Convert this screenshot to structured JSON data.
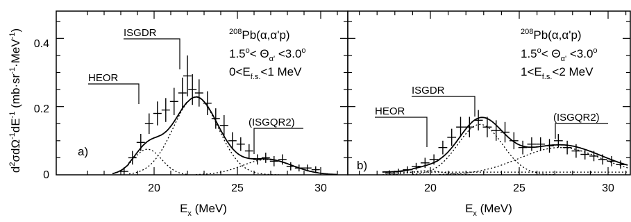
{
  "chart_data": {
    "type": "scatter",
    "ylabel_parts": {
      "a": "d",
      "b": "2",
      "c": "σdΩ",
      "d": "-1",
      "e": "dE",
      "f": "-1",
      "g": " (mb·sr",
      "h": "-1",
      "i": "·MeV",
      "j": "-1",
      "k": ")"
    },
    "yticks": [
      "0",
      "0.2",
      "0.4"
    ],
    "ylim": [
      0,
      0.48
    ],
    "xlim": [
      15.8,
      31.1
    ],
    "grid": false,
    "panels": [
      {
        "id": "a",
        "panel_label": "a)",
        "xlabel_main": "E",
        "xlabel_sub": "x",
        "xlabel_unit": " (MeV)",
        "xticks": [
          "20",
          "25",
          "30"
        ],
        "annotation": {
          "iso_sup": "208",
          "reaction": "Pb(α,α'p)",
          "angle_left": "1.5",
          "angle_deg1": "o",
          "angle_mid": "< Θ",
          "angle_sub": "α'",
          "angle_right": " <3.0",
          "angle_deg2": "o",
          "fs_left": "0<E",
          "fs_sub": "f.s.",
          "fs_right": "<1 MeV"
        },
        "resonances": [
          {
            "label": "HEOR",
            "x": 19.8
          },
          {
            "label": "ISGDR",
            "x": 22.2
          },
          {
            "label": "(ISGQR2)",
            "x": 26.2
          }
        ],
        "points": [
          {
            "x": 18.2,
            "y": 0.01,
            "err": 0.012
          },
          {
            "x": 18.7,
            "y": 0.05,
            "err": 0.02
          },
          {
            "x": 19.2,
            "y": 0.095,
            "err": 0.025
          },
          {
            "x": 19.7,
            "y": 0.15,
            "err": 0.03
          },
          {
            "x": 20.2,
            "y": 0.18,
            "err": 0.035
          },
          {
            "x": 20.7,
            "y": 0.19,
            "err": 0.035
          },
          {
            "x": 21.2,
            "y": 0.215,
            "err": 0.04
          },
          {
            "x": 21.7,
            "y": 0.24,
            "err": 0.045
          },
          {
            "x": 22.0,
            "y": 0.29,
            "err": 0.06
          },
          {
            "x": 22.3,
            "y": 0.25,
            "err": 0.045
          },
          {
            "x": 22.7,
            "y": 0.24,
            "err": 0.04
          },
          {
            "x": 23.2,
            "y": 0.21,
            "err": 0.035
          },
          {
            "x": 23.7,
            "y": 0.165,
            "err": 0.03
          },
          {
            "x": 24.2,
            "y": 0.145,
            "err": 0.03
          },
          {
            "x": 24.7,
            "y": 0.1,
            "err": 0.025
          },
          {
            "x": 25.2,
            "y": 0.09,
            "err": 0.02
          },
          {
            "x": 25.7,
            "y": 0.07,
            "err": 0.02
          },
          {
            "x": 26.2,
            "y": 0.045,
            "err": 0.015
          },
          {
            "x": 26.7,
            "y": 0.05,
            "err": 0.015
          },
          {
            "x": 27.2,
            "y": 0.04,
            "err": 0.015
          },
          {
            "x": 27.7,
            "y": 0.045,
            "err": 0.015
          },
          {
            "x": 28.2,
            "y": 0.025,
            "err": 0.012
          },
          {
            "x": 28.7,
            "y": 0.02,
            "err": 0.01
          },
          {
            "x": 29.2,
            "y": 0.02,
            "err": 0.01
          },
          {
            "x": 29.7,
            "y": 0.015,
            "err": 0.01
          }
        ],
        "components": [
          {
            "kind": "gauss",
            "A": 0.075,
            "mu": 19.6,
            "sigma": 0.85,
            "range": [
              17.5,
              22.0
            ]
          },
          {
            "kind": "gauss",
            "A": 0.228,
            "mu": 22.5,
            "sigma": 1.35,
            "range": [
              18.5,
              27.5
            ]
          },
          {
            "kind": "gauss",
            "A": 0.045,
            "mu": 26.8,
            "sigma": 1.5,
            "range": [
              22.5,
              31.0
            ]
          }
        ]
      },
      {
        "id": "b",
        "panel_label": "b)",
        "xlabel_main": "E",
        "xlabel_sub": "x",
        "xlabel_unit": " (MeV)",
        "xticks": [
          "20",
          "25",
          "30"
        ],
        "annotation": {
          "iso_sup": "208",
          "reaction": "Pb(α,α'p)",
          "angle_left": "1.5",
          "angle_deg1": "o",
          "angle_mid": "< Θ",
          "angle_sub": "α'",
          "angle_right": " <3.0",
          "angle_deg2": "o",
          "fs_left": "1<E",
          "fs_sub": "f.s.",
          "fs_right": "<2 MeV"
        },
        "resonances": [
          {
            "label": "HEOR",
            "x": 19.8
          },
          {
            "label": "ISGDR",
            "x": 22.7
          },
          {
            "label": "(ISGQR2)",
            "x": 27.0
          }
        ],
        "points": [
          {
            "x": 17.7,
            "y": 0.005,
            "err": 0.008
          },
          {
            "x": 18.2,
            "y": 0.01,
            "err": 0.008
          },
          {
            "x": 18.7,
            "y": 0.015,
            "err": 0.01
          },
          {
            "x": 19.2,
            "y": 0.025,
            "err": 0.01
          },
          {
            "x": 19.7,
            "y": 0.035,
            "err": 0.015
          },
          {
            "x": 20.2,
            "y": 0.045,
            "err": 0.015
          },
          {
            "x": 20.7,
            "y": 0.08,
            "err": 0.02
          },
          {
            "x": 21.2,
            "y": 0.11,
            "err": 0.025
          },
          {
            "x": 21.7,
            "y": 0.14,
            "err": 0.03
          },
          {
            "x": 22.2,
            "y": 0.14,
            "err": 0.03
          },
          {
            "x": 22.7,
            "y": 0.16,
            "err": 0.03
          },
          {
            "x": 23.2,
            "y": 0.14,
            "err": 0.03
          },
          {
            "x": 23.7,
            "y": 0.13,
            "err": 0.03
          },
          {
            "x": 24.2,
            "y": 0.125,
            "err": 0.03
          },
          {
            "x": 24.7,
            "y": 0.1,
            "err": 0.025
          },
          {
            "x": 25.2,
            "y": 0.08,
            "err": 0.02
          },
          {
            "x": 25.7,
            "y": 0.09,
            "err": 0.02
          },
          {
            "x": 26.2,
            "y": 0.09,
            "err": 0.02
          },
          {
            "x": 26.7,
            "y": 0.085,
            "err": 0.02
          },
          {
            "x": 27.2,
            "y": 0.1,
            "err": 0.02
          },
          {
            "x": 27.7,
            "y": 0.08,
            "err": 0.02
          },
          {
            "x": 28.2,
            "y": 0.07,
            "err": 0.02
          },
          {
            "x": 28.7,
            "y": 0.06,
            "err": 0.015
          },
          {
            "x": 29.2,
            "y": 0.055,
            "err": 0.015
          },
          {
            "x": 29.7,
            "y": 0.045,
            "err": 0.015
          },
          {
            "x": 30.2,
            "y": 0.04,
            "err": 0.015
          },
          {
            "x": 30.7,
            "y": 0.03,
            "err": 0.012
          }
        ],
        "components": [
          {
            "kind": "gauss",
            "A": 0.012,
            "mu": 19.8,
            "sigma": 0.9,
            "range": [
              17.3,
              22.5
            ]
          },
          {
            "kind": "gauss",
            "A": 0.148,
            "mu": 22.8,
            "sigma": 1.25,
            "range": [
              19.0,
              27.0
            ]
          },
          {
            "kind": "gauss",
            "A": 0.08,
            "mu": 27.3,
            "sigma": 2.3,
            "range": [
              20.5,
              31.1
            ]
          },
          {
            "kind": "flat",
            "A": 0.008,
            "range": [
              17.3,
              31.1
            ]
          }
        ]
      }
    ]
  }
}
